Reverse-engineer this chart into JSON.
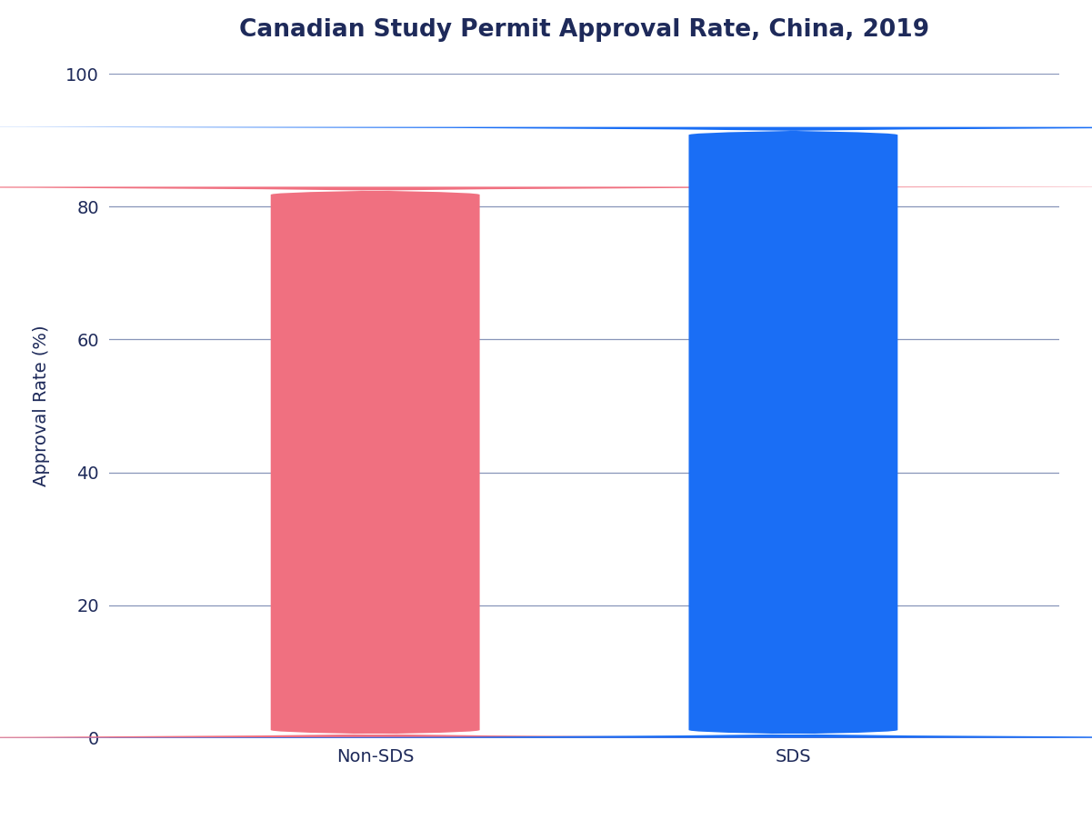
{
  "categories": [
    "Non-SDS",
    "SDS"
  ],
  "values": [
    83,
    92
  ],
  "bar_colors": [
    "#f07080",
    "#1a6ef5"
  ],
  "title": "Canadian Study Permit Approval Rate, China, 2019",
  "ylabel": "Approval Rate (%)",
  "ylim": [
    0,
    100
  ],
  "yticks": [
    0,
    20,
    40,
    60,
    80,
    100
  ],
  "title_fontsize": 19,
  "label_fontsize": 14,
  "tick_fontsize": 14,
  "background_color": "#ffffff",
  "text_color": "#1e2a5a",
  "grid_color": "#6a7ba8",
  "bar_width": 0.22,
  "x_positions": [
    0.28,
    0.72
  ],
  "xlim": [
    0,
    1
  ]
}
